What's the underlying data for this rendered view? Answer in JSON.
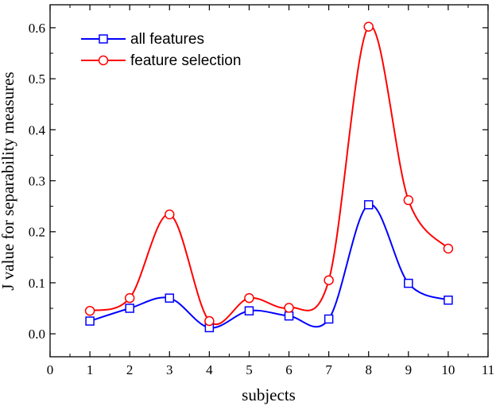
{
  "chart_data": {
    "type": "line",
    "xlabel": "subjects",
    "ylabel": "J value for separability measures",
    "xlim": [
      0,
      11
    ],
    "ylim": [
      -0.045,
      0.645
    ],
    "xticks": [
      0,
      1,
      2,
      3,
      4,
      5,
      6,
      7,
      8,
      9,
      10,
      11
    ],
    "yticks": [
      0.0,
      0.1,
      0.2,
      0.3,
      0.4,
      0.5,
      0.6
    ],
    "ytick_labels": [
      "0.0",
      "0.1",
      "0.2",
      "0.3",
      "0.4",
      "0.5",
      "0.6"
    ],
    "grid": false,
    "legend_position": "top-left",
    "x": [
      1,
      2,
      3,
      4,
      5,
      6,
      7,
      8,
      9,
      10
    ],
    "series": [
      {
        "name": "all features",
        "color": "#0000ff",
        "marker": "square",
        "values": [
          0.025,
          0.05,
          0.07,
          0.012,
          0.045,
          0.035,
          0.029,
          0.253,
          0.099,
          0.066
        ]
      },
      {
        "name": "feature selection",
        "color": "#ff0000",
        "marker": "circle",
        "values": [
          0.045,
          0.07,
          0.234,
          0.025,
          0.07,
          0.051,
          0.105,
          0.602,
          0.262,
          0.167
        ]
      }
    ]
  }
}
